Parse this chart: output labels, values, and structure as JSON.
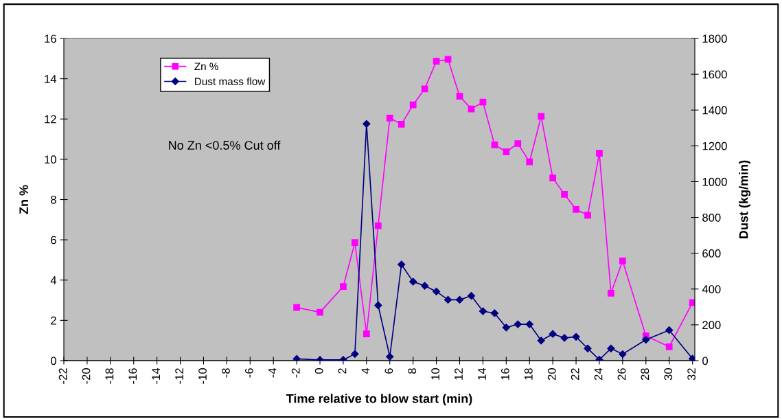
{
  "chart_data": {
    "type": "line",
    "xlabel": "Time relative to blow start (min)",
    "ylabel": "Zn %",
    "y2label": "Dust (kg/min)",
    "annotations": [
      "No Zn <0.5% Cut off"
    ],
    "xlim": [
      -22,
      32.2
    ],
    "xticks": [
      -22,
      -20,
      -18,
      -16,
      -14,
      -12,
      -10,
      -8,
      -6,
      -4,
      -2,
      0,
      2,
      4,
      6,
      8,
      10,
      12,
      14,
      16,
      18,
      20,
      22,
      24,
      26,
      28,
      30,
      32
    ],
    "ylim": [
      0,
      16
    ],
    "yticks": [
      0,
      2,
      4,
      6,
      8,
      10,
      12,
      14,
      16
    ],
    "y2lim": [
      0,
      1800
    ],
    "y2ticks": [
      0,
      200,
      400,
      600,
      800,
      1000,
      1200,
      1400,
      1600,
      1800
    ],
    "x": [
      -2,
      0,
      2,
      3,
      4,
      5,
      6,
      7,
      8,
      9,
      10,
      11,
      12,
      13,
      14,
      15,
      16,
      17,
      18,
      19,
      20,
      21,
      22,
      23,
      24,
      25,
      26,
      28,
      30,
      32
    ],
    "grid": false,
    "legend": "top left",
    "series": [
      {
        "name": "Zn %",
        "color": "#ff00ff",
        "marker": "square",
        "values": [
          2.64,
          2.4,
          3.68,
          5.86,
          1.33,
          6.7,
          12.05,
          11.74,
          12.7,
          13.5,
          14.87,
          14.96,
          13.13,
          12.5,
          12.84,
          10.72,
          10.37,
          10.78,
          9.87,
          12.13,
          9.07,
          8.26,
          7.51,
          7.22,
          10.3,
          3.35,
          4.95,
          1.23,
          0.69,
          2.88
        ]
      },
      {
        "name": "Dust mass flow",
        "color": "#000080",
        "marker": "diamond",
        "axis": "y2",
        "values": [
          10,
          4,
          4,
          37,
          1323,
          309,
          22,
          537,
          441,
          418,
          386,
          340,
          340,
          362,
          276,
          265,
          185,
          203,
          203,
          112,
          149,
          127,
          133,
          68,
          5,
          68,
          36,
          117,
          170,
          11
        ]
      }
    ]
  }
}
